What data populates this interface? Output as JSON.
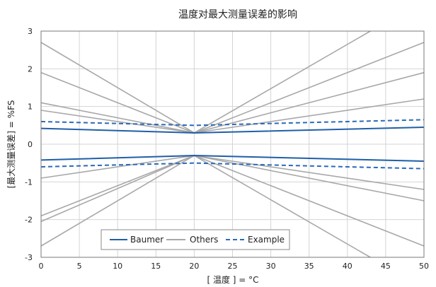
{
  "chart_data": {
    "type": "line",
    "title": "温度对最大测量误差的影响",
    "xlabel": "[ 温度 ] = °C",
    "ylabel": "[最大测量误差] = %FS",
    "xlim": [
      0,
      50
    ],
    "ylim": [
      -3,
      3
    ],
    "x_ticks": [
      0,
      5,
      10,
      15,
      20,
      25,
      30,
      35,
      40,
      45,
      50
    ],
    "y_ticks": [
      -3,
      -2,
      -1,
      0,
      1,
      2,
      3
    ],
    "grid": true,
    "legend_position": "bottom-left",
    "colors": {
      "baumer": "#1f5fa8",
      "others": "#a8a8a8",
      "example": "#2a6ab8",
      "grid": "#d4d4d4",
      "frame": "#7a7a7a"
    },
    "legend": [
      {
        "name": "Baumer",
        "style": "solid",
        "color_key": "baumer"
      },
      {
        "name": "Others",
        "style": "solid",
        "color_key": "others"
      },
      {
        "name": "Example",
        "style": "dashed",
        "color_key": "example"
      }
    ],
    "series": [
      {
        "group": "Baumer",
        "points": [
          [
            0,
            0.42
          ],
          [
            20,
            0.3
          ],
          [
            50,
            0.45
          ]
        ]
      },
      {
        "group": "Baumer",
        "points": [
          [
            0,
            -0.42
          ],
          [
            20,
            -0.3
          ],
          [
            50,
            -0.45
          ]
        ]
      },
      {
        "group": "Example",
        "points": [
          [
            0,
            0.6
          ],
          [
            20,
            0.5
          ],
          [
            50,
            0.65
          ]
        ]
      },
      {
        "group": "Example",
        "points": [
          [
            0,
            -0.6
          ],
          [
            20,
            -0.5
          ],
          [
            50,
            -0.65
          ]
        ]
      },
      {
        "group": "Others",
        "points": [
          [
            0,
            2.7
          ],
          [
            20,
            0.3
          ],
          [
            50,
            2.7
          ]
        ]
      },
      {
        "group": "Others",
        "points": [
          [
            0,
            1.9
          ],
          [
            20,
            0.3
          ],
          [
            43,
            3.0
          ]
        ]
      },
      {
        "group": "Others",
        "points": [
          [
            0,
            1.1
          ],
          [
            20,
            0.3
          ],
          [
            50,
            1.2
          ]
        ]
      },
      {
        "group": "Others",
        "points": [
          [
            0,
            0.9
          ],
          [
            20,
            0.3
          ],
          [
            50,
            1.9
          ]
        ]
      },
      {
        "group": "Others",
        "points": [
          [
            0,
            -0.9
          ],
          [
            20,
            -0.3
          ],
          [
            50,
            -1.2
          ]
        ]
      },
      {
        "group": "Others",
        "points": [
          [
            0,
            -1.9
          ],
          [
            20,
            -0.3
          ],
          [
            50,
            -1.5
          ]
        ]
      },
      {
        "group": "Others",
        "points": [
          [
            0,
            -2.05
          ],
          [
            20,
            -0.3
          ],
          [
            50,
            -2.7
          ]
        ]
      },
      {
        "group": "Others",
        "points": [
          [
            0,
            -2.7
          ],
          [
            20,
            -0.3
          ],
          [
            43,
            -3.0
          ]
        ]
      }
    ]
  }
}
